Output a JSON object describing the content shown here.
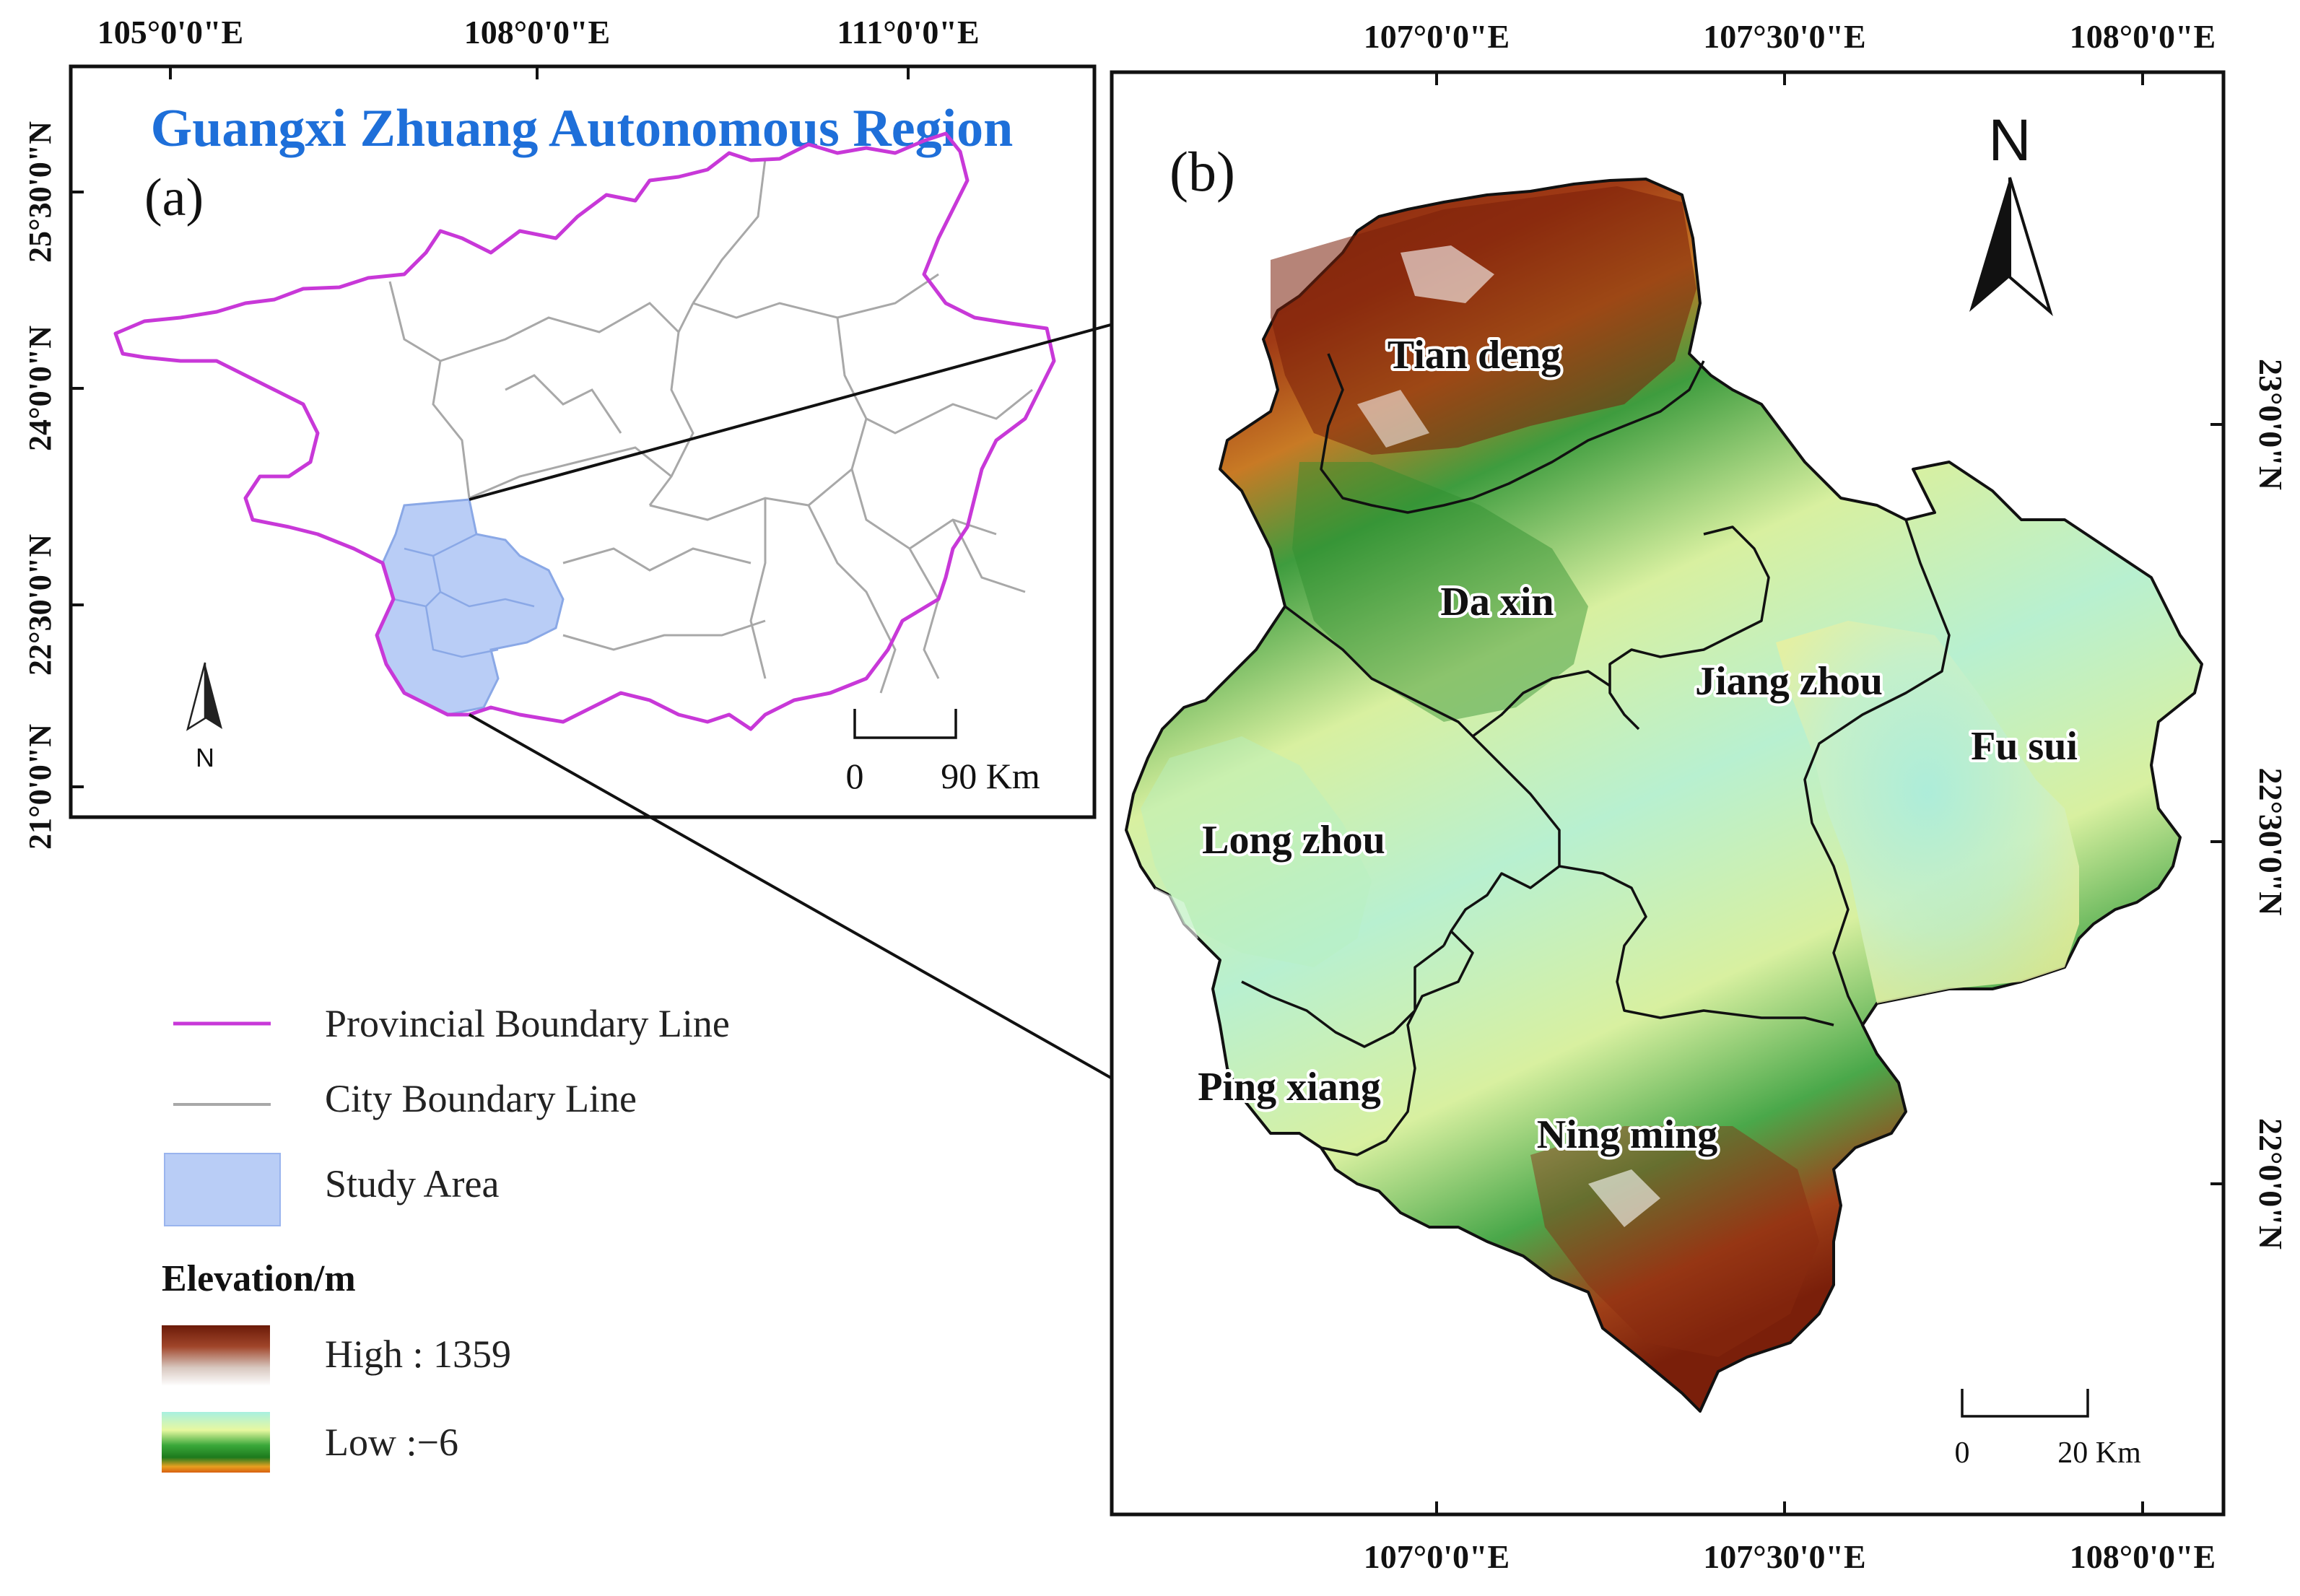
{
  "panel_a": {
    "title": "Guangxi Zhuang Autonomous Region",
    "tag": "(a)",
    "lon_labels": [
      "105°0'0\"E",
      "108°0'0\"E",
      "111°0'0\"E"
    ],
    "lat_labels": [
      "25°30'0\"N",
      "24°0'0\"N",
      "22°30'0\"N",
      "21°0'0\"N"
    ],
    "north_label": "N",
    "scale": {
      "zero": "0",
      "value": "90 Km"
    },
    "colors": {
      "title": "#1e6fd9",
      "province": "#c838d8",
      "city": "#a0a0a0",
      "study": "#b9cdf6"
    }
  },
  "panel_b": {
    "tag": "(b)",
    "lon_top": [
      "107°0'0\"E",
      "107°30'0\"E",
      "108°0'0\"E"
    ],
    "lon_bottom": [
      "107°0'0\"E",
      "107°30'0\"E",
      "108°0'0\"E"
    ],
    "lat_labels": [
      "23°0'0\"N",
      "22°30'0\"N",
      "22°0'0\"N"
    ],
    "north_label": "N",
    "scale": {
      "zero": "0",
      "value": "20 Km"
    },
    "districts": [
      "Tian deng",
      "Da xin",
      "Jiang zhou",
      "Fu sui",
      "Long zhou",
      "Ping xiang",
      "Ning ming"
    ]
  },
  "legend": {
    "items": [
      {
        "label": "Provincial Boundary Line"
      },
      {
        "label": "City Boundary Line"
      },
      {
        "label": "Study Area"
      }
    ],
    "elevation_title": "Elevation/m",
    "high_label": "High : 1359",
    "low_label": "Low :−6"
  }
}
